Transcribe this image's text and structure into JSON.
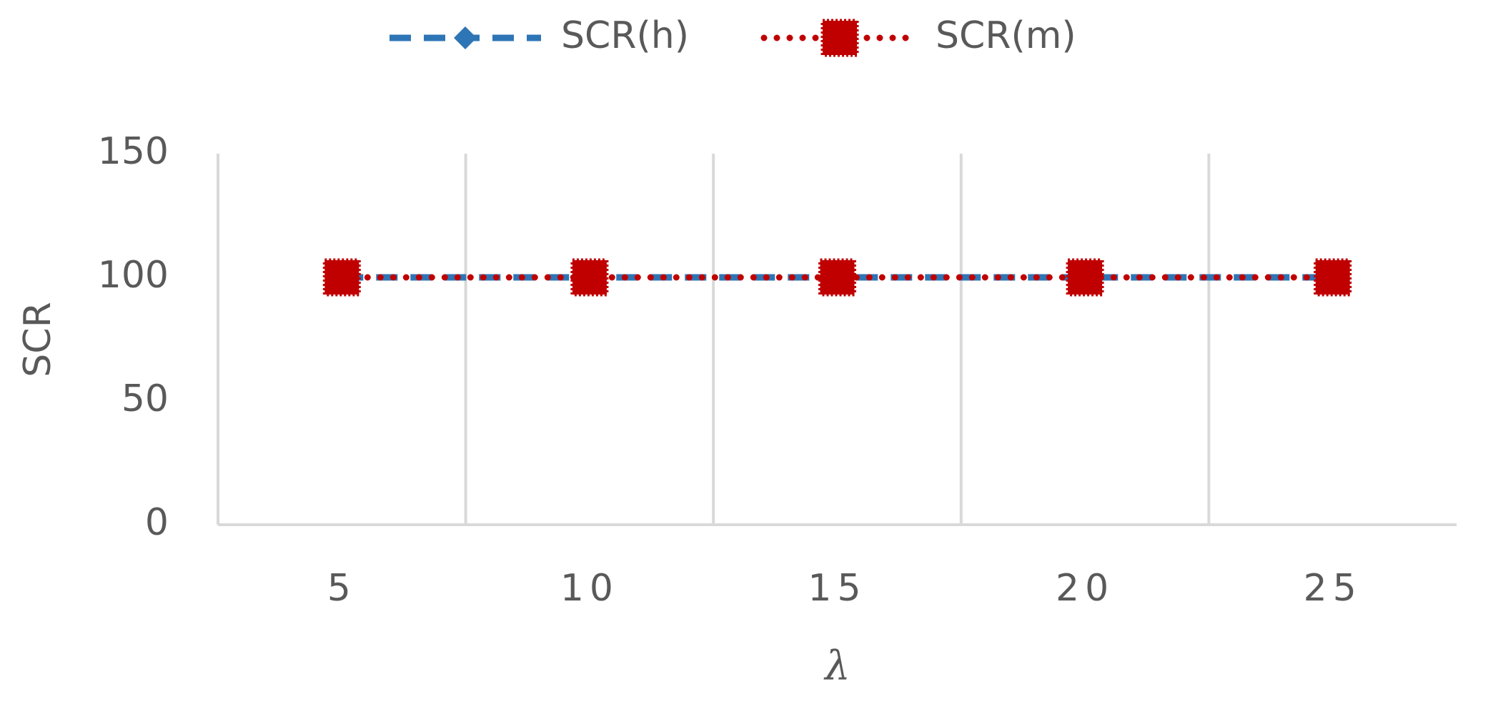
{
  "chart_data": {
    "type": "line",
    "x_label": "λ",
    "y_label": "SCR",
    "categories": [
      "5",
      "10",
      "15",
      "20",
      "25"
    ],
    "series": [
      {
        "name": "SCR(h)",
        "color": "#2e75b6",
        "values": [
          100,
          100,
          100,
          100,
          100
        ]
      },
      {
        "name": "SCR(m)",
        "color": "#c00000",
        "values": [
          100,
          100,
          100,
          100,
          100
        ]
      }
    ],
    "ylim": [
      0,
      150
    ],
    "yticks": [
      0,
      50,
      100,
      150
    ],
    "grid": true,
    "legend": "top"
  }
}
